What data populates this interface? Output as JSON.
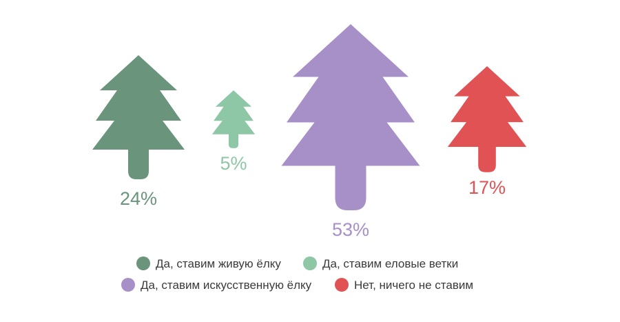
{
  "chart_data": {
    "type": "pictogram",
    "categories": [
      "Да, ставим живую ёлку",
      "Да, ставим еловые ветки",
      "Да, ставим искусственную ёлку",
      "Нет, ничего не ставим"
    ],
    "values": [
      24,
      5,
      53,
      17
    ],
    "value_labels": [
      "24%",
      "5%",
      "53%",
      "17%"
    ],
    "unit": "%",
    "colors": [
      "#6a947b",
      "#8ec7a6",
      "#a78fc8",
      "#e05254"
    ],
    "icon": "fir-tree-icon",
    "legend_position": "bottom",
    "legend_marker": "circle",
    "grid": false
  }
}
